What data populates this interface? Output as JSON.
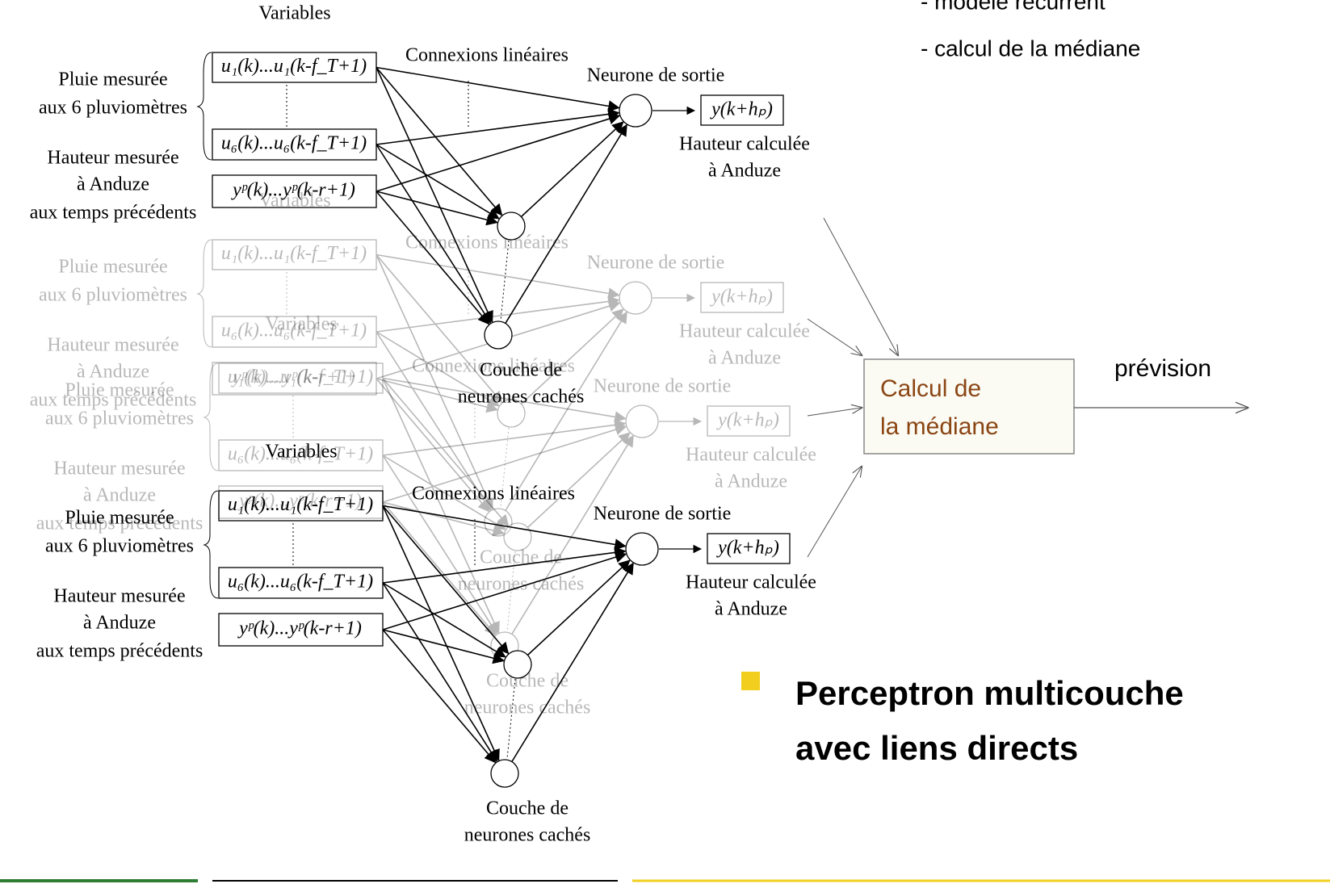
{
  "slide": {
    "top_bullets": [
      "- modèle récurrent",
      "- calcul de la médiane"
    ],
    "median_box": [
      "Calcul  de",
      "la médiane"
    ],
    "forecast_label": "prévision",
    "main_bullet": [
      "Perceptron multicouche",
      "avec liens directs"
    ]
  },
  "network": {
    "variables": "Variables",
    "connections": "Connexions linéaires",
    "output_neuron": "Neurone de sortie",
    "input_groups": [
      [
        "Pluie mesurée",
        "aux 6 pluviomètres"
      ],
      [
        "Hauteur mesurée",
        "à Anduze",
        "aux temps précédents"
      ]
    ],
    "input_boxes": [
      "u₁(k)...u₁(k-f_T+1)",
      "u₆(k)...u₆(k-f_T+1)",
      "yᵖ(k)...yᵖ(k-r+1)"
    ],
    "output_box": "y(k+hₚ)",
    "output_label": [
      "Hauteur calculée",
      "à Anduze"
    ],
    "hidden_layer": [
      "Couche de",
      "neurones cachés"
    ]
  }
}
